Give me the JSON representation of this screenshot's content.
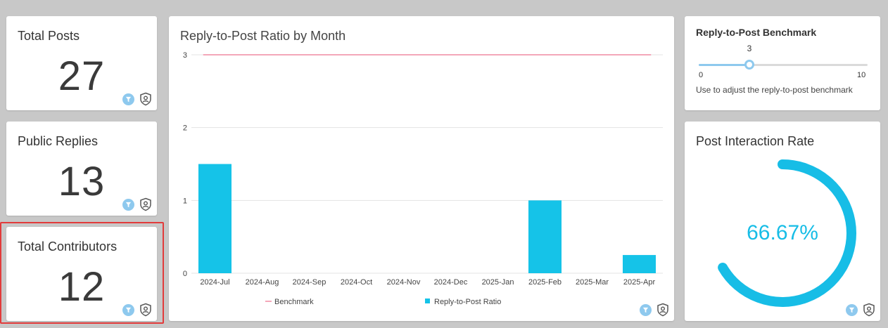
{
  "kpis": [
    {
      "title": "Total Posts",
      "value": "27"
    },
    {
      "title": "Public Replies",
      "value": "13"
    },
    {
      "title": "Total Contributors",
      "value": "12"
    }
  ],
  "benchmark": {
    "title": "Reply-to-Post Benchmark",
    "value": 3,
    "value_label": "3",
    "min_label": "0",
    "max_label": "10",
    "min": 0,
    "max": 10,
    "help": "Use to adjust the reply-to-post benchmark"
  },
  "gauge": {
    "title": "Post Interaction Rate",
    "value_label": "66.67%",
    "fraction": 0.6667
  },
  "colors": {
    "bar": "#15c3e8",
    "benchmark_line": "#f4a7b9",
    "accent_light": "#8ec9ee",
    "gauge": "#17bde6"
  },
  "icons": [
    "filter-icon",
    "shield-icon"
  ],
  "chart_data": {
    "type": "bar",
    "title": "Reply-to-Post Ratio by Month",
    "categories": [
      "2024-Jul",
      "2024-Aug",
      "2024-Sep",
      "2024-Oct",
      "2024-Nov",
      "2024-Dec",
      "2025-Jan",
      "2025-Feb",
      "2025-Mar",
      "2025-Apr"
    ],
    "series": [
      {
        "name": "Reply-to-Post Ratio",
        "type": "bar",
        "values": [
          1.5,
          0,
          0,
          0,
          0,
          0,
          0,
          1,
          0,
          0.25
        ]
      },
      {
        "name": "Benchmark",
        "type": "line",
        "values": [
          3,
          3,
          3,
          3,
          3,
          3,
          3,
          3,
          3,
          3
        ]
      }
    ],
    "yticks": [
      "0",
      "1",
      "2",
      "3"
    ],
    "ylim": [
      0,
      3
    ],
    "grid": true,
    "legend": "bottom"
  }
}
